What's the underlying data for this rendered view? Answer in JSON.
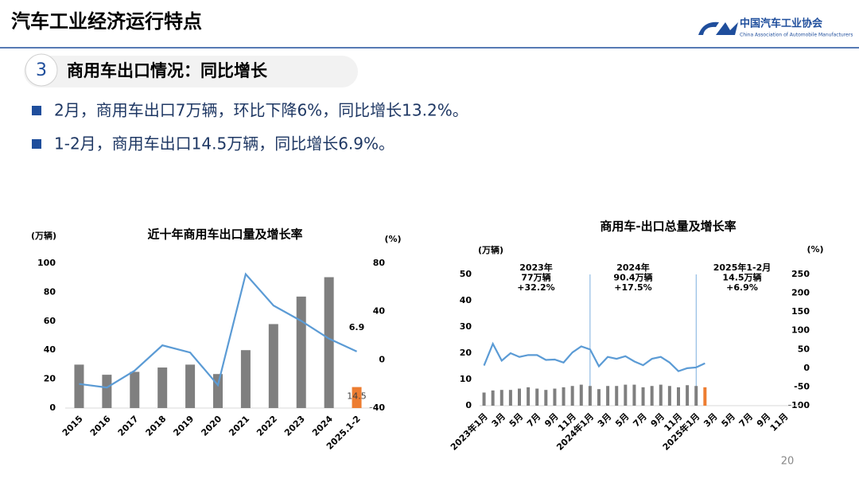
{
  "header": {
    "title": "汽车工业经济运行特点",
    "org_cn": "中国汽车工业协会",
    "org_en": "China Association of Automobile Manufacturers"
  },
  "section": {
    "number": "3",
    "title": "商用车出口情况：同比增长"
  },
  "bullets": [
    "2月，商用车出口7万辆，环比下降6%，同比增长13.2%。",
    "1-2月，商用车出口14.5万辆，同比增长6.9%。"
  ],
  "page_number": "20",
  "chart_data": [
    {
      "type": "combo",
      "title": "近十年商用车出口量及增长率",
      "y_label": "(万辆)",
      "y2_label": "(%)",
      "categories": [
        "2015",
        "2016",
        "2017",
        "2018",
        "2019",
        "2020",
        "2021",
        "2022",
        "2023",
        "2024",
        "2025.1-2"
      ],
      "series": [
        {
          "type": "bar",
          "color": "#7f7f7f",
          "colors": [
            "#7f7f7f",
            "#7f7f7f",
            "#7f7f7f",
            "#7f7f7f",
            "#7f7f7f",
            "#7f7f7f",
            "#7f7f7f",
            "#7f7f7f",
            "#7f7f7f",
            "#7f7f7f",
            "#ed7d31"
          ],
          "values": [
            30,
            23,
            25,
            28,
            30,
            23.5,
            40,
            58,
            77,
            90.4,
            14.5
          ],
          "value_labels": [
            null,
            null,
            null,
            null,
            null,
            null,
            null,
            null,
            null,
            null,
            "14.5"
          ]
        },
        {
          "type": "line",
          "axis": "y2",
          "color": "#5b9bd5",
          "values": [
            -20,
            -23,
            -9,
            12,
            6,
            -21,
            71,
            45,
            32.2,
            17.5,
            6.9
          ],
          "value_labels": [
            null,
            null,
            null,
            null,
            null,
            null,
            null,
            null,
            null,
            null,
            "6.9"
          ]
        }
      ],
      "ylim": [
        0,
        100
      ],
      "yticks": [
        0,
        20,
        40,
        60,
        80,
        100
      ],
      "y2lim": [
        -40,
        80
      ],
      "y2ticks": [
        -40,
        0,
        40,
        80
      ]
    },
    {
      "type": "combo",
      "title": "商用车-出口总量及增长率",
      "y_label": "(万辆)",
      "y2_label": "(%)",
      "categories": [
        "2023年1月",
        null,
        "3月",
        null,
        "5月",
        null,
        "7月",
        null,
        "9月",
        null,
        "11月",
        null,
        "2024年1月",
        null,
        "3月",
        null,
        "5月",
        null,
        "7月",
        null,
        "9月",
        null,
        "11月",
        null,
        "2025年1月",
        null,
        "3月",
        null,
        "5月",
        null,
        "7月",
        null,
        "9月",
        null,
        "11月",
        null
      ],
      "series": [
        {
          "type": "bar",
          "color": "#7f7f7f",
          "colors": [
            "#7f7f7f",
            "#7f7f7f",
            "#7f7f7f",
            "#7f7f7f",
            "#7f7f7f",
            "#7f7f7f",
            "#7f7f7f",
            "#7f7f7f",
            "#7f7f7f",
            "#7f7f7f",
            "#7f7f7f",
            "#7f7f7f",
            "#7f7f7f",
            "#7f7f7f",
            "#7f7f7f",
            "#7f7f7f",
            "#7f7f7f",
            "#7f7f7f",
            "#7f7f7f",
            "#7f7f7f",
            "#7f7f7f",
            "#7f7f7f",
            "#7f7f7f",
            "#7f7f7f",
            "#7f7f7f",
            "#ed7d31",
            null,
            null,
            null,
            null,
            null,
            null,
            null,
            null,
            null,
            null
          ],
          "values": [
            5,
            5.8,
            6,
            6,
            6.5,
            7,
            6.5,
            6,
            6.5,
            7,
            7.5,
            8,
            7.5,
            6.3,
            7.5,
            7.5,
            8,
            8,
            7,
            7.5,
            8,
            7.5,
            7,
            7.8,
            7.5,
            7,
            null,
            null,
            null,
            null,
            null,
            null,
            null,
            null,
            null,
            null
          ]
        },
        {
          "type": "line",
          "axis": "y2",
          "color": "#5b9bd5",
          "values": [
            7,
            65,
            20,
            40,
            30,
            35,
            35,
            22,
            23,
            15,
            42,
            58,
            50,
            5,
            30,
            25,
            32,
            18,
            8,
            25,
            30,
            15,
            -8,
            0,
            2,
            13,
            null,
            null,
            null,
            null,
            null,
            null,
            null,
            null,
            null,
            null
          ]
        }
      ],
      "annotations": [
        [
          "2023年",
          "77万辆",
          "+32.2%"
        ],
        [
          "2024年",
          "90.4万辆",
          "+17.5%"
        ],
        [
          "2025年1-2月",
          "14.5万辆",
          "+6.9%"
        ]
      ],
      "ylim": [
        0,
        50
      ],
      "yticks": [
        0,
        10,
        20,
        30,
        40,
        50
      ],
      "y2lim": [
        -100,
        250
      ],
      "y2ticks": [
        -100,
        -50,
        0,
        50,
        100,
        150,
        200,
        250
      ]
    }
  ]
}
